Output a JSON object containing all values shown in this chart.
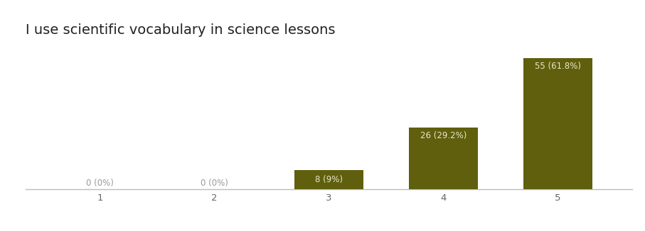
{
  "title": "I use scientific vocabulary in science lessons",
  "categories": [
    1,
    2,
    3,
    4,
    5
  ],
  "values": [
    0,
    0,
    8,
    26,
    55
  ],
  "labels": [
    "0 (0%)",
    "0 (0%)",
    "8 (9%)",
    "26 (29.2%)",
    "55 (61.8%)"
  ],
  "bar_color": "#5f5f0e",
  "label_color_inside": "#e8e8c8",
  "label_color_outside": "#999999",
  "background_color": "#ffffff",
  "grid_color": "#d8d8d8",
  "ylim": [
    0,
    62
  ],
  "title_fontsize": 14,
  "label_fontsize": 8.5,
  "tick_fontsize": 9.5,
  "bar_width": 0.6
}
